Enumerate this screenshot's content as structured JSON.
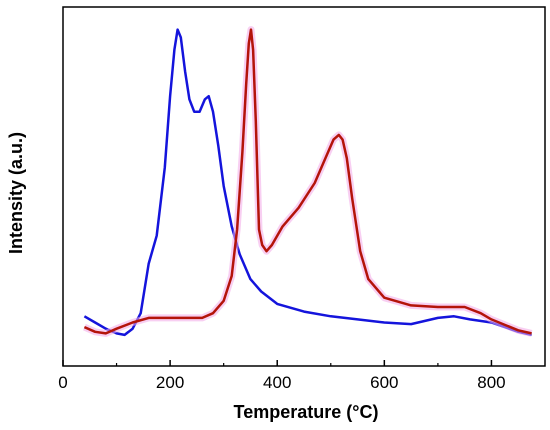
{
  "chart_data": {
    "type": "line",
    "xlabel": "Temperature (°C)",
    "ylabel": "Intensity (a.u.)",
    "xlim": [
      0,
      900
    ],
    "ylim": [
      0,
      1
    ],
    "x_ticks": [
      0,
      200,
      400,
      600,
      800
    ],
    "y_ticks_shown": false,
    "grid": false,
    "legend": "none",
    "series": [
      {
        "color": "#1414dc",
        "x": [
          40,
          60,
          80,
          100,
          115,
          130,
          145,
          160,
          175,
          190,
          200,
          208,
          214,
          220,
          228,
          236,
          245,
          255,
          265,
          272,
          280,
          290,
          300,
          315,
          330,
          350,
          370,
          400,
          450,
          500,
          550,
          600,
          650,
          700,
          730,
          760,
          800,
          850,
          875
        ],
        "values": [
          0.07,
          0.05,
          0.03,
          0.015,
          0.01,
          0.03,
          0.08,
          0.24,
          0.33,
          0.55,
          0.78,
          0.93,
          0.995,
          0.97,
          0.86,
          0.77,
          0.73,
          0.73,
          0.77,
          0.78,
          0.73,
          0.62,
          0.49,
          0.36,
          0.27,
          0.19,
          0.15,
          0.11,
          0.085,
          0.07,
          0.06,
          0.05,
          0.045,
          0.065,
          0.07,
          0.06,
          0.05,
          0.02,
          0.01
        ]
      },
      {
        "color": "#b4140a",
        "x": [
          40,
          60,
          80,
          100,
          130,
          160,
          200,
          230,
          260,
          280,
          300,
          315,
          325,
          335,
          342,
          347,
          351,
          355,
          360,
          366,
          372,
          380,
          390,
          410,
          440,
          470,
          490,
          505,
          515,
          522,
          530,
          540,
          555,
          570,
          600,
          650,
          700,
          750,
          780,
          800,
          850,
          875
        ],
        "values": [
          0.035,
          0.02,
          0.015,
          0.03,
          0.05,
          0.065,
          0.065,
          0.065,
          0.065,
          0.08,
          0.12,
          0.2,
          0.35,
          0.6,
          0.82,
          0.95,
          0.995,
          0.93,
          0.7,
          0.35,
          0.3,
          0.28,
          0.3,
          0.36,
          0.42,
          0.5,
          0.58,
          0.64,
          0.655,
          0.64,
          0.58,
          0.45,
          0.28,
          0.19,
          0.13,
          0.105,
          0.1,
          0.1,
          0.08,
          0.06,
          0.025,
          0.015
        ]
      }
    ]
  }
}
